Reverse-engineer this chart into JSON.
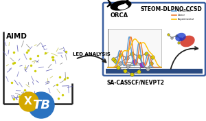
{
  "title": "STEOM-DLPNO-CCSD",
  "subtitle": "SA-CASSCF/NEVPT2",
  "orca_label": "ORCA",
  "aimd_label": "AIMD",
  "led_label": "LED ANALYSIS",
  "xtb_label": "TB",
  "spectrum_colors": [
    "#5b9bd5",
    "#ed7d31",
    "#ffc000"
  ],
  "legend_labels": [
    "Bismuthine",
    "Donor",
    "Experimental"
  ],
  "molecule_S_color": "#d4c800",
  "molecule_M_color": "#9b30c0",
  "molecule_C_color": "#b0b0b0",
  "molecule_bond_color": "#888888",
  "arrow_color": "#222222",
  "box_border_color": "#3a5fa0",
  "box_fill_color": "#2a4a80",
  "xtb_blue_color": "#2a72c0",
  "xtb_gold_color": "#d4a800",
  "aimd_line_color": "#222222",
  "bg_color": "#ffffff"
}
